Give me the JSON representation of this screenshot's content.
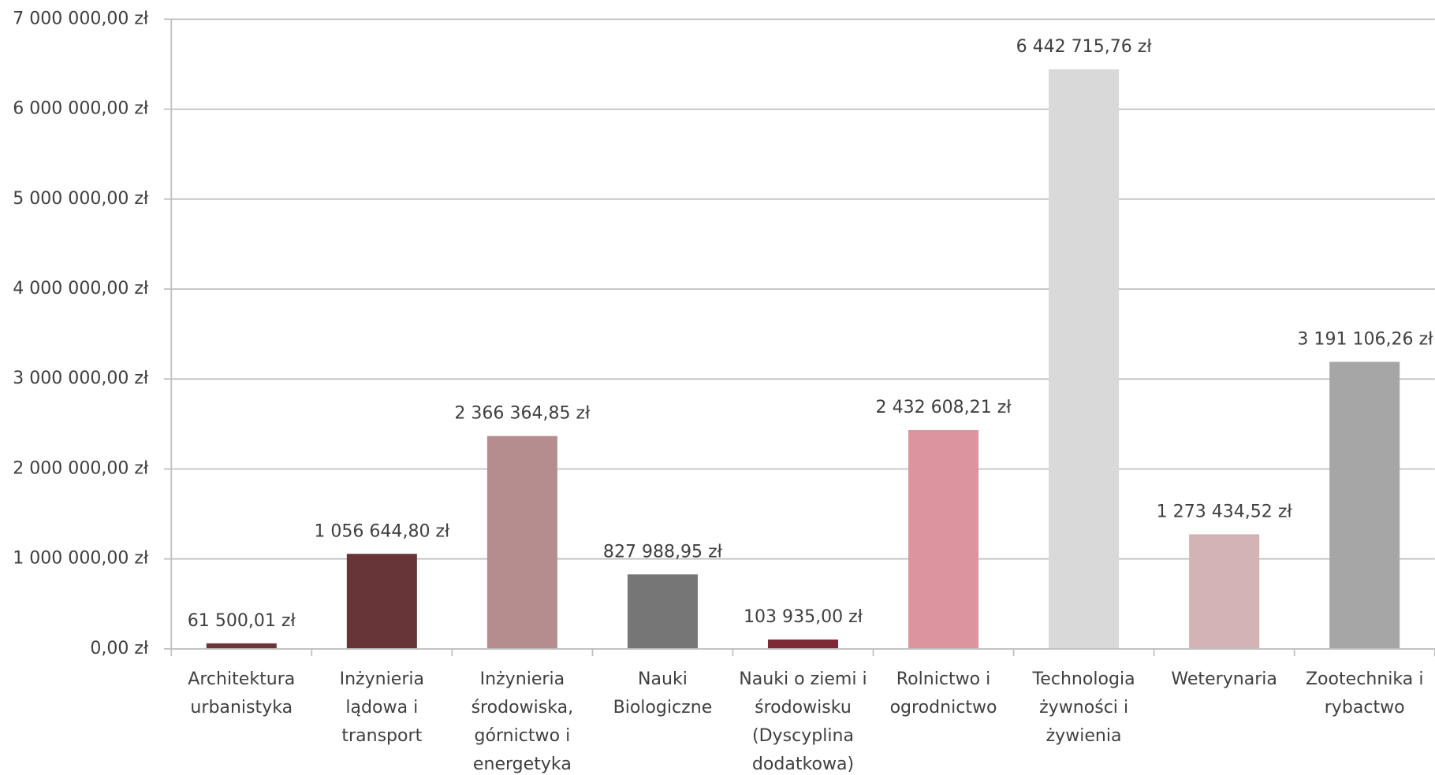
{
  "chart_data": {
    "type": "bar",
    "categories": [
      "Architektura urbanistyka",
      "Inżynieria lądowa i transport",
      "Inżynieria środowiska, górnictwo i energetyka",
      "Nauki Biologiczne",
      "Nauki o ziemi i środowisku (Dyscyplina dodatkowa)",
      "Rolnictwo i ogrodnictwo",
      "Technologia żywności i żywienia",
      "Weterynaria",
      "Zootechnika i rybactwo"
    ],
    "values": [
      61500.01,
      1056644.8,
      2366364.85,
      827988.95,
      103935.0,
      2432608.21,
      6442715.76,
      1273434.52,
      3191106.26
    ],
    "value_labels": [
      "61 500,01 zł",
      "1 056 644,80 zł",
      "2 366 364,85 zł",
      "827 988,95 zł",
      "103 935,00 zł",
      "2 432 608,21 zł",
      "6 442 715,76 zł",
      "1 273 434,52 zł",
      "3 191 106,26 zł"
    ],
    "colors": [
      "#6b3439",
      "#673538",
      "#b58d8e",
      "#767676",
      "#7b2a36",
      "#dc959f",
      "#d9d9d9",
      "#d3b3b4",
      "#a6a6a6"
    ],
    "ylim": [
      0,
      7000000
    ],
    "yticks": [
      {
        "value": 0,
        "label": "0,00 zł"
      },
      {
        "value": 1000000,
        "label": "1 000 000,00 zł"
      },
      {
        "value": 2000000,
        "label": "2 000 000,00 zł"
      },
      {
        "value": 3000000,
        "label": "3 000 000,00 zł"
      },
      {
        "value": 4000000,
        "label": "4 000 000,00 zł"
      },
      {
        "value": 5000000,
        "label": "5 000 000,00 zł"
      },
      {
        "value": 6000000,
        "label": "6 000 000,00 zł"
      },
      {
        "value": 7000000,
        "label": "7 000 000,00 zł"
      }
    ],
    "grid": true
  }
}
